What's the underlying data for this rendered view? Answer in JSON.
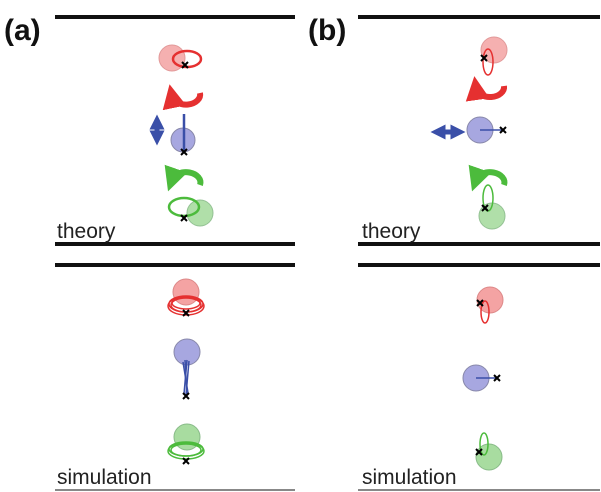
{
  "panels": [
    {
      "label": "(a)",
      "sections": [
        "theory",
        "simulation"
      ]
    },
    {
      "label": "(b)",
      "sections": [
        "theory",
        "simulation"
      ]
    }
  ]
}
